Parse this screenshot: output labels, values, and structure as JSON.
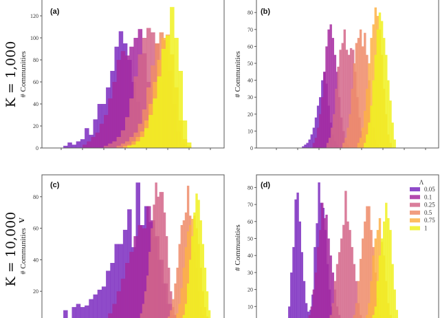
{
  "row_labels": {
    "top": "K = 1,000",
    "bottom": "K = 10,000"
  },
  "stray_label": "Λ",
  "legend": {
    "title": "Λ",
    "entries": [
      {
        "label": "0.05",
        "color": "#7b2cbf"
      },
      {
        "label": "0.1",
        "color": "#a62aa0"
      },
      {
        "label": "0.25",
        "color": "#d4668a"
      },
      {
        "label": "0.5",
        "color": "#ef8c6a"
      },
      {
        "label": "0.75",
        "color": "#fdb147"
      },
      {
        "label": "1",
        "color": "#f0f121"
      }
    ]
  },
  "chart_data": [
    {
      "type": "bar",
      "panel": "(a)",
      "ylabel": "# Communities",
      "ylim": [
        0,
        128
      ],
      "yticks": [
        0,
        20,
        40,
        60,
        80,
        100,
        120
      ],
      "xticks_count": 8,
      "bin_width": 0.2,
      "series": [
        {
          "name": "0.05",
          "x_start": 0.1,
          "counts": [
            2,
            5,
            3,
            6,
            8,
            18,
            12,
            26,
            40,
            40,
            55,
            70,
            92,
            106,
            95,
            80,
            60,
            42,
            25,
            12,
            5,
            2
          ]
        },
        {
          "name": "0.1",
          "x_start": 1.0,
          "counts": [
            3,
            6,
            10,
            14,
            22,
            30,
            45,
            60,
            80,
            88,
            84,
            92,
            100,
            108,
            86,
            60,
            30,
            12,
            4
          ]
        },
        {
          "name": "0.25",
          "x_start": 2.0,
          "counts": [
            2,
            4,
            6,
            10,
            16,
            28,
            45,
            65,
            85,
            100,
            109,
            105,
            95,
            60,
            25,
            8,
            2
          ]
        },
        {
          "name": "0.5",
          "x_start": 2.6,
          "counts": [
            2,
            4,
            6,
            10,
            14,
            22,
            35,
            55,
            75,
            95,
            105,
            98,
            70,
            40,
            15,
            4
          ]
        },
        {
          "name": "0.75",
          "x_start": 2.9,
          "counts": [
            2,
            3,
            6,
            10,
            15,
            25,
            40,
            60,
            80,
            100,
            103,
            85,
            55,
            25,
            8,
            2
          ]
        },
        {
          "name": "1",
          "x_start": 3.1,
          "counts": [
            2,
            3,
            6,
            10,
            18,
            30,
            45,
            65,
            90,
            102,
            128,
            100,
            70,
            25,
            5
          ]
        }
      ]
    },
    {
      "type": "bar",
      "panel": "(b)",
      "ylabel": "# Communities",
      "ylim": [
        0,
        85
      ],
      "yticks": [
        0,
        10,
        20,
        30,
        40,
        50,
        60,
        70,
        80
      ],
      "xticks_count": 8,
      "bin_width": 0.1,
      "series": [
        {
          "name": "0.05",
          "x_start": 1.2,
          "counts": [
            1,
            2,
            3,
            5,
            8,
            12,
            18,
            25,
            30,
            40,
            45,
            38,
            25,
            15,
            8,
            4,
            2
          ]
        },
        {
          "name": "0.1",
          "x_start": 1.7,
          "counts": [
            3,
            6,
            12,
            20,
            30,
            45,
            60,
            70,
            73,
            65,
            55,
            45,
            30,
            18,
            10,
            5,
            2
          ]
        },
        {
          "name": "0.25",
          "x_start": 2.35,
          "counts": [
            3,
            6,
            12,
            20,
            35,
            48,
            58,
            62,
            70,
            58,
            55,
            59,
            58,
            45,
            30,
            18,
            10,
            5,
            2
          ]
        },
        {
          "name": "0.5",
          "x_start": 3.1,
          "counts": [
            3,
            6,
            12,
            20,
            35,
            50,
            62,
            65,
            70,
            60,
            68,
            55,
            40,
            25,
            12,
            5,
            2
          ]
        },
        {
          "name": "0.75",
          "x_start": 3.8,
          "counts": [
            3,
            6,
            12,
            22,
            35,
            50,
            65,
            73,
            83,
            78,
            70,
            55,
            35,
            20,
            8,
            3
          ]
        },
        {
          "name": "1",
          "x_start": 4.1,
          "counts": [
            3,
            8,
            15,
            25,
            40,
            55,
            70,
            80,
            75,
            65,
            55,
            40,
            28,
            15,
            5
          ]
        }
      ]
    },
    {
      "type": "bar",
      "panel": "(c)",
      "ylabel": "# Communities",
      "ylim": [
        0,
        94
      ],
      "yticks": [
        20,
        40,
        60,
        80
      ],
      "bin_width_series": [
        0.2,
        0.2,
        0.1,
        0.1,
        0.1,
        0.1
      ],
      "series": [
        {
          "name": "0.05",
          "x_start": 0.1,
          "counts": [
            8,
            2,
            10,
            12,
            10,
            11,
            15,
            18,
            21,
            23,
            33,
            38,
            50,
            50,
            59,
            72,
            48,
            89,
            62,
            74,
            64,
            54,
            40,
            25,
            12,
            5
          ]
        },
        {
          "name": "0.1",
          "x_start": 2.0,
          "counts": [
            3,
            6,
            12,
            20,
            28,
            38,
            45,
            55,
            62,
            60,
            74,
            65,
            55,
            40,
            25,
            12,
            5
          ]
        },
        {
          "name": "0.25",
          "x_start": 3.6,
          "counts": [
            3,
            6,
            12,
            20,
            30,
            45,
            60,
            75,
            89,
            80,
            83,
            83,
            70,
            55,
            35,
            20,
            10,
            5
          ]
        },
        {
          "name": "0.5",
          "x_start": 5.0,
          "counts": [
            4,
            8,
            15,
            25,
            35,
            50,
            62,
            65,
            70,
            87,
            68,
            55,
            45,
            35,
            20,
            10,
            5
          ]
        },
        {
          "name": "0.75",
          "x_start": 5.3,
          "counts": [
            3,
            6,
            12,
            22,
            35,
            48,
            58,
            62,
            66,
            68,
            60,
            50,
            35,
            20,
            10,
            4
          ]
        },
        {
          "name": "1",
          "x_start": 5.7,
          "counts": [
            5,
            12,
            25,
            40,
            55,
            70,
            82,
            78,
            65,
            50,
            35,
            20,
            8,
            3
          ]
        }
      ]
    },
    {
      "type": "bar",
      "panel": "(d)",
      "ylabel": "# Communities",
      "ylim": [
        0,
        87
      ],
      "yticks": [
        10,
        20,
        30,
        40,
        50,
        60,
        70,
        80
      ],
      "bin_width": 0.1,
      "legend": "top-right",
      "series": [
        {
          "name": "0.05",
          "x_start": 0.55,
          "counts": [
            10,
            30,
            45,
            73,
            77,
            60,
            42,
            25,
            12,
            7,
            8,
            17,
            45,
            59,
            83,
            71,
            68,
            55,
            35,
            20,
            10,
            4
          ]
        },
        {
          "name": "0.1",
          "x_start": 1.5,
          "counts": [
            5,
            10,
            20,
            30,
            45,
            55,
            71,
            62,
            64,
            50,
            40,
            30,
            20,
            10,
            5
          ]
        },
        {
          "name": "0.25",
          "x_start": 2.5,
          "counts": [
            5,
            12,
            25,
            35,
            42,
            50,
            58,
            78,
            60,
            55,
            45,
            35,
            25,
            12,
            5
          ]
        },
        {
          "name": "0.5",
          "x_start": 3.6,
          "counts": [
            5,
            12,
            25,
            38,
            50,
            60,
            69,
            69,
            55,
            45,
            30,
            15,
            5
          ]
        },
        {
          "name": "0.75",
          "x_start": 4.2,
          "counts": [
            5,
            12,
            25,
            40,
            50,
            55,
            62,
            48,
            40,
            25,
            12,
            5
          ]
        },
        {
          "name": "1",
          "x_start": 4.5,
          "counts": [
            5,
            10,
            25,
            40,
            50,
            60,
            71,
            62,
            55,
            35,
            20,
            8
          ]
        }
      ]
    }
  ]
}
